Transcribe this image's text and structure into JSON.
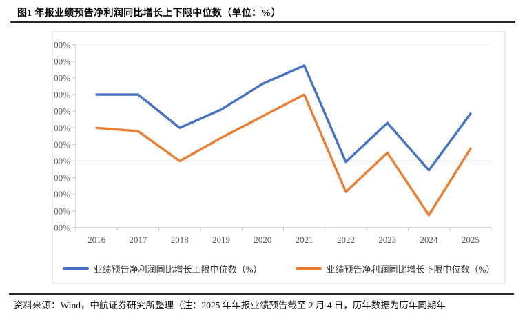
{
  "page": {
    "title": "图1  年报业绩预告净利润同比增长上下限中位数（单位：%）",
    "source_note": "资料来源：Wind，中航证券研究所整理（注：2025 年年报业绩预告截至 2 月 4 日，历年数据为历年同期年"
  },
  "colors": {
    "series_upper": "#4472C4",
    "series_lower": "#ED7D31",
    "axis_line": "#c9c9c9",
    "zero_gridline": "#d9d9d9",
    "top_gridline": "#f0f0f0",
    "axis_text": "#595959",
    "rule": "#262626",
    "frame_border": "#ededed"
  },
  "chart_data": {
    "type": "line",
    "title": "年报业绩预告净利润同比增长上下限中位数（单位：%）",
    "categories": [
      "2016",
      "2017",
      "2018",
      "2019",
      "2020",
      "2021",
      "2022",
      "2023",
      "2024",
      "2025"
    ],
    "series": [
      {
        "name": "业绩预告净利润同比增长上限中位数（%）",
        "color": "#4472C4",
        "values": [
          40,
          40,
          20,
          31,
          46.5,
          57.5,
          -0.5,
          23,
          -5.5,
          28.5
        ]
      },
      {
        "name": "业绩预告净利润同比增长下限中位数（%）",
        "color": "#ED7D31",
        "values": [
          20,
          18,
          0,
          14,
          27,
          40,
          -18.5,
          5,
          -32.5,
          7.5
        ]
      }
    ],
    "xlabel": "",
    "ylabel": "",
    "ylim": [
      -40,
      70
    ],
    "ytick_step": 10,
    "ytick_format": "0.00%",
    "grid": "zero-line-only",
    "legend_position": "bottom"
  }
}
